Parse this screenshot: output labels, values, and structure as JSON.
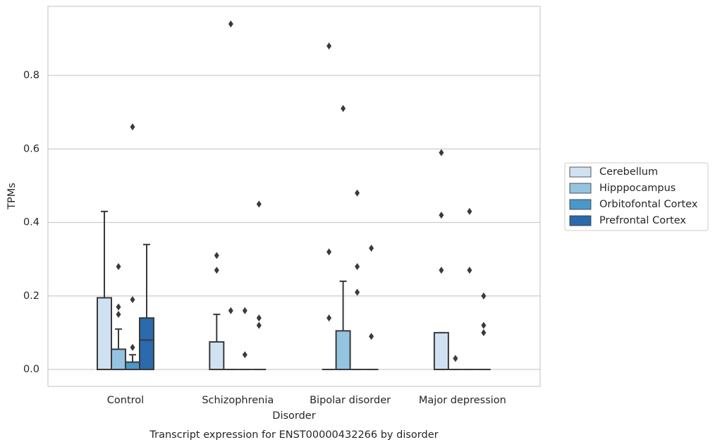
{
  "chart_data": {
    "type": "box",
    "title": "Transcript expression for ENST00000432266 by disorder",
    "x_label": "Disorder",
    "y_label": "TPMs",
    "categories": [
      "Control",
      "Schizophrenia",
      "Bipolar disorder",
      "Major depression"
    ],
    "ylim": [
      -0.046,
      0.988
    ],
    "yticks": [
      {
        "value": 0,
        "label": "0.0"
      },
      0.2,
      0.4,
      0.6,
      0.8
    ],
    "grid": true,
    "legend": "right",
    "series": [
      {
        "name": "Cerebellum",
        "color": "#d0e1f2",
        "boxes": [
          {
            "min": 0,
            "q1": 0,
            "median": 0,
            "q3": 0.195,
            "max": 0.43,
            "outliers": []
          },
          {
            "min": 0,
            "q1": 0,
            "median": 0,
            "q3": 0.075,
            "max": 0.15,
            "outliers": [
              0.27,
              0.31
            ]
          },
          {
            "min": 0,
            "q1": 0,
            "median": 0,
            "q3": 0,
            "max": 0,
            "outliers": [
              0.14,
              0.32,
              0.88
            ]
          },
          {
            "min": 0,
            "q1": 0,
            "median": 0,
            "q3": 0.1,
            "max": 0.1,
            "outliers": [
              0.27,
              0.42,
              0.59
            ]
          }
        ]
      },
      {
        "name": "Hipppocampus",
        "color": "#94c4df",
        "boxes": [
          {
            "min": 0,
            "q1": 0,
            "median": 0,
            "q3": 0.055,
            "max": 0.11,
            "outliers": [
              0.15,
              0.17,
              0.28
            ]
          },
          {
            "min": 0,
            "q1": 0,
            "median": 0,
            "q3": 0,
            "max": 0,
            "outliers": [
              0.16,
              0.94
            ]
          },
          {
            "min": 0,
            "q1": 0,
            "median": 0,
            "q3": 0.105,
            "max": 0.24,
            "outliers": [
              0.71
            ]
          },
          {
            "min": 0,
            "q1": 0,
            "median": 0,
            "q3": 0,
            "max": 0,
            "outliers": [
              0.03
            ]
          }
        ]
      },
      {
        "name": "Orbitofontal Cortex",
        "color": "#4a98c9",
        "boxes": [
          {
            "min": 0,
            "q1": 0,
            "median": 0,
            "q3": 0.02,
            "max": 0.04,
            "outliers": [
              0.06,
              0.19,
              0.66
            ]
          },
          {
            "min": 0,
            "q1": 0,
            "median": 0,
            "q3": 0,
            "max": 0,
            "outliers": [
              0.04,
              0.16
            ]
          },
          {
            "min": 0,
            "q1": 0,
            "median": 0,
            "q3": 0,
            "max": 0,
            "outliers": [
              0.21,
              0.28,
              0.48
            ]
          },
          {
            "min": 0,
            "q1": 0,
            "median": 0,
            "q3": 0,
            "max": 0,
            "outliers": [
              0.27,
              0.43
            ]
          }
        ]
      },
      {
        "name": "Prefrontal Cortex",
        "color": "#2a6aad",
        "boxes": [
          {
            "min": 0,
            "q1": 0,
            "median": 0.08,
            "q3": 0.14,
            "max": 0.34,
            "outliers": []
          },
          {
            "min": 0,
            "q1": 0,
            "median": 0,
            "q3": 0,
            "max": 0,
            "outliers": [
              0.12,
              0.14,
              0.45
            ]
          },
          {
            "min": 0,
            "q1": 0,
            "median": 0,
            "q3": 0,
            "max": 0,
            "outliers": [
              0.09,
              0.33
            ]
          },
          {
            "min": 0,
            "q1": 0,
            "median": 0,
            "q3": 0,
            "max": 0,
            "outliers": [
              0.1,
              0.12,
              0.2
            ]
          }
        ]
      }
    ]
  }
}
